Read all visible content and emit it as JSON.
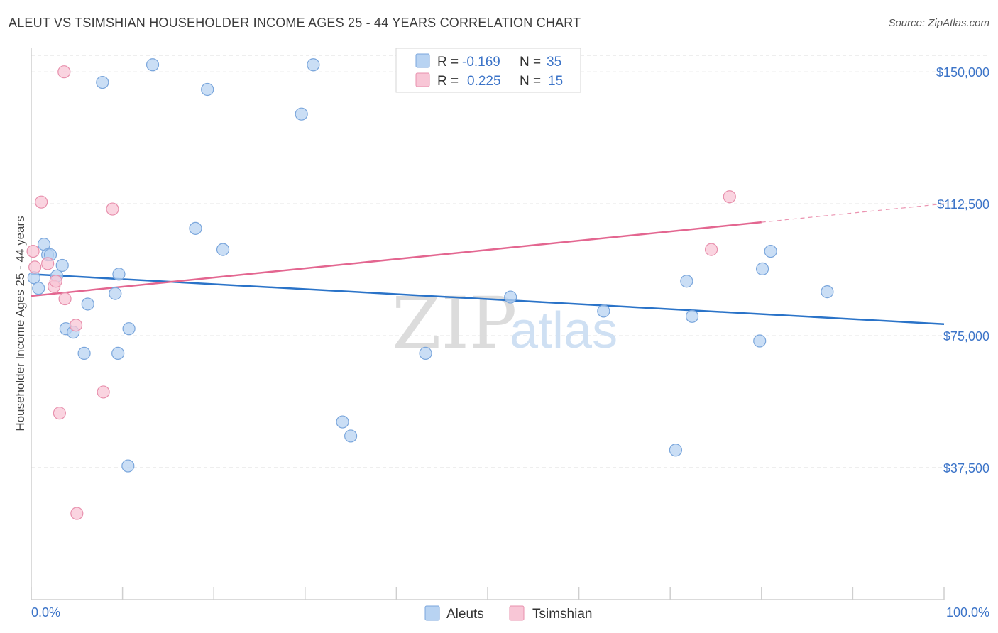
{
  "title": "ALEUT VS TSIMSHIAN HOUSEHOLDER INCOME AGES 25 - 44 YEARS CORRELATION CHART",
  "source": "Source: ZipAtlas.com",
  "watermark": {
    "zip": "ZIP",
    "atlas": "atlas"
  },
  "colors": {
    "aleut_fill": "#b8d3f2",
    "aleut_stroke": "#7aa6dc",
    "aleut_line": "#2a73c8",
    "tsim_fill": "#f8c6d6",
    "tsim_stroke": "#e890ad",
    "tsim_line": "#e36690",
    "grid": "#dddddd",
    "axis_text": "#3c74c8"
  },
  "legend": {
    "rows": [
      {
        "r_label": "R =",
        "r_value": "-0.169",
        "n_label": "N =",
        "n_value": "35"
      },
      {
        "r_label": "R =",
        "r_value": "0.225",
        "n_label": "N =",
        "n_value": "15"
      }
    ]
  },
  "chart_data": {
    "type": "scatter",
    "title": "ALEUT VS TSIMSHIAN HOUSEHOLDER INCOME AGES 25 - 44 YEARS CORRELATION CHART",
    "xlabel": "",
    "ylabel": "Householder Income Ages 25 - 44 years",
    "xlim": [
      0,
      100
    ],
    "ylim": [
      0,
      157500
    ],
    "x_tick_labels": [
      "0.0%",
      "100.0%"
    ],
    "y_ticks": [
      37500,
      75000,
      112500,
      150000
    ],
    "y_tick_labels": [
      "$37,500",
      "$75,000",
      "$112,500",
      "$150,000"
    ],
    "grid": true,
    "legend_position": "top-center",
    "series": [
      {
        "name": "Aleuts",
        "points": [
          [
            0.3,
            91500
          ],
          [
            0.8,
            88500
          ],
          [
            1.4,
            101000
          ],
          [
            1.8,
            98000
          ],
          [
            2.1,
            98000
          ],
          [
            2.8,
            92000
          ],
          [
            3.4,
            95000
          ],
          [
            3.8,
            77000
          ],
          [
            4.6,
            76000
          ],
          [
            5.8,
            70000
          ],
          [
            6.2,
            84000
          ],
          [
            7.8,
            147000
          ],
          [
            9.2,
            87000
          ],
          [
            9.5,
            70000
          ],
          [
            9.6,
            92500
          ],
          [
            10.6,
            38000
          ],
          [
            10.7,
            77000
          ],
          [
            13.3,
            152000
          ],
          [
            18.0,
            105500
          ],
          [
            19.3,
            145000
          ],
          [
            21.0,
            99500
          ],
          [
            29.6,
            138000
          ],
          [
            30.9,
            152000
          ],
          [
            34.1,
            50500
          ],
          [
            35.0,
            46500
          ],
          [
            43.2,
            70000
          ],
          [
            52.5,
            86000
          ],
          [
            62.7,
            82000
          ],
          [
            70.6,
            42500
          ],
          [
            71.8,
            90500
          ],
          [
            72.4,
            80500
          ],
          [
            79.8,
            73500
          ],
          [
            80.1,
            94000
          ],
          [
            81.0,
            99000
          ],
          [
            87.2,
            87500
          ]
        ]
      },
      {
        "name": "Tsimshian",
        "points": [
          [
            0.2,
            99000
          ],
          [
            0.4,
            94500
          ],
          [
            1.1,
            113000
          ],
          [
            1.8,
            95500
          ],
          [
            2.5,
            89000
          ],
          [
            2.7,
            90500
          ],
          [
            3.1,
            53000
          ],
          [
            3.6,
            150000
          ],
          [
            3.7,
            85500
          ],
          [
            4.9,
            78000
          ],
          [
            5.0,
            24500
          ],
          [
            7.9,
            59000
          ],
          [
            8.9,
            111000
          ],
          [
            74.5,
            99500
          ],
          [
            76.5,
            114500
          ]
        ]
      }
    ],
    "trendlines": [
      {
        "series": "Aleuts",
        "x": [
          0,
          100
        ],
        "y": [
          92500,
          78300
        ],
        "dashed_from": null
      },
      {
        "series": "Tsimshian",
        "x": [
          0,
          100
        ],
        "y": [
          86300,
          112500
        ],
        "solid_until": 80
      }
    ]
  },
  "bottom_legend": [
    {
      "label": "Aleuts"
    },
    {
      "label": "Tsimshian"
    }
  ]
}
